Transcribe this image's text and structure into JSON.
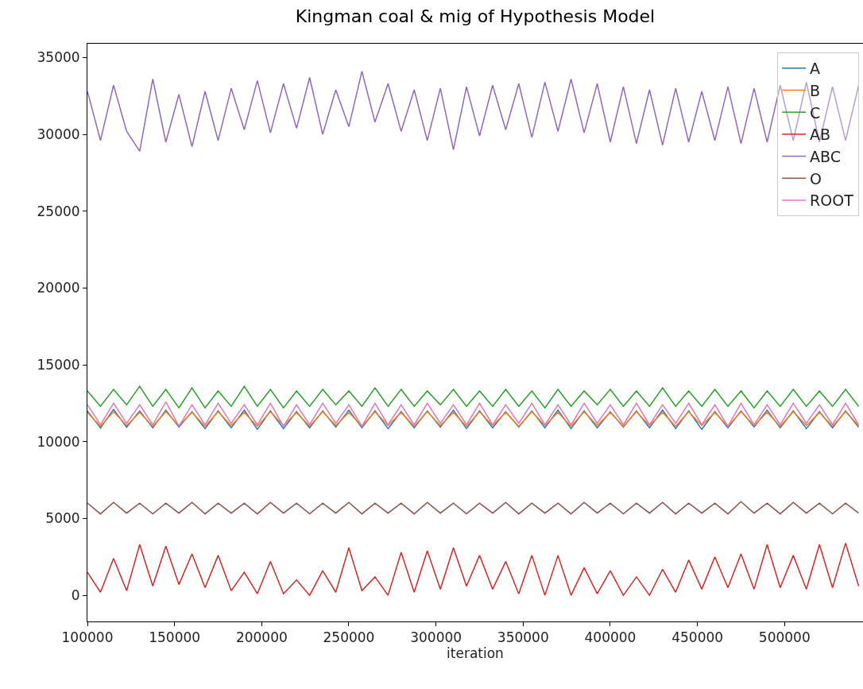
{
  "chart_data": {
    "type": "line",
    "title": "Kingman coal & mig of Hypothesis Model",
    "xlabel": "iteration",
    "x": [
      100000,
      107500,
      115000,
      122500,
      130000,
      137500,
      145000,
      152500,
      160000,
      167500,
      175000,
      182500,
      190000,
      197500,
      205000,
      212500,
      220000,
      227500,
      235000,
      242500,
      250000,
      257500,
      265000,
      272500,
      280000,
      287500,
      295000,
      302500,
      310000,
      317500,
      325000,
      332500,
      340000,
      347500,
      355000,
      362500,
      370000,
      377500,
      385000,
      392500,
      400000,
      407500,
      415000,
      422500,
      430000,
      437500,
      445000,
      452500,
      460000,
      467500,
      475000,
      482500,
      490000,
      497500,
      505000,
      512500,
      520000,
      527500,
      535000,
      542500
    ],
    "series": [
      {
        "name": "A",
        "color": "#1f77b4",
        "values": [
          12000,
          10900,
          12100,
          10950,
          12000,
          10900,
          12050,
          10950,
          11950,
          10850,
          12000,
          10900,
          12050,
          10800,
          12000,
          10850,
          11950,
          10900,
          12000,
          10950,
          12050,
          10900,
          12000,
          10850,
          11950,
          10900,
          12000,
          10950,
          12050,
          10850,
          12000,
          10900,
          11950,
          10950,
          12000,
          10900,
          12050,
          10850,
          12000,
          10900,
          11950,
          10950,
          12000,
          10900,
          12050,
          10850,
          12000,
          10800,
          11950,
          10900,
          12000,
          10950,
          12050,
          10900,
          12000,
          10850,
          11950,
          10900,
          12000,
          10950
        ]
      },
      {
        "name": "B",
        "color": "#ff7f0e",
        "values": [
          11900,
          11000,
          11950,
          11050,
          11900,
          11000,
          11950,
          11050,
          11900,
          11000,
          11950,
          11050,
          11900,
          11000,
          11950,
          11050,
          11900,
          11000,
          11950,
          11050,
          11900,
          11000,
          11950,
          11050,
          11900,
          11000,
          11950,
          11050,
          11900,
          11000,
          11950,
          11050,
          11900,
          11000,
          11950,
          11050,
          11900,
          11000,
          11950,
          11050,
          11900,
          11000,
          11950,
          11050,
          11900,
          11000,
          11950,
          11050,
          11900,
          11000,
          11950,
          11050,
          11900,
          11000,
          11950,
          11050,
          11900,
          11000,
          11950,
          11050
        ]
      },
      {
        "name": "C",
        "color": "#2ca02c",
        "values": [
          13300,
          12300,
          13400,
          12400,
          13600,
          12300,
          13400,
          12200,
          13500,
          12200,
          13300,
          12300,
          13600,
          12300,
          13400,
          12200,
          13300,
          12300,
          13400,
          12400,
          13300,
          12300,
          13500,
          12300,
          13400,
          12300,
          13300,
          12400,
          13400,
          12300,
          13300,
          12300,
          13400,
          12300,
          13300,
          12200,
          13400,
          12300,
          13300,
          12400,
          13400,
          12300,
          13300,
          12300,
          13500,
          12300,
          13300,
          12300,
          13400,
          12300,
          13300,
          12200,
          13300,
          12300,
          13400,
          12300,
          13300,
          12300,
          13400,
          12300
        ]
      },
      {
        "name": "AB",
        "color": "#d62728",
        "values": [
          1500,
          200,
          2400,
          300,
          3300,
          600,
          3200,
          700,
          2700,
          500,
          2600,
          300,
          1500,
          100,
          2200,
          100,
          1000,
          0,
          1600,
          200,
          3100,
          300,
          1200,
          0,
          2800,
          200,
          2900,
          400,
          3100,
          600,
          2600,
          400,
          2200,
          100,
          2600,
          0,
          2600,
          0,
          1800,
          100,
          1600,
          0,
          1200,
          0,
          1700,
          200,
          2300,
          400,
          2500,
          500,
          2700,
          400,
          3300,
          500,
          2600,
          400,
          3300,
          500,
          3400,
          600
        ]
      },
      {
        "name": "ABC",
        "color": "#9467bd",
        "values": [
          32800,
          29600,
          33200,
          30200,
          28900,
          33600,
          29500,
          32600,
          29200,
          32800,
          29600,
          33000,
          30300,
          33500,
          30100,
          33300,
          30400,
          33700,
          30000,
          32900,
          30500,
          34100,
          30800,
          33300,
          30200,
          32900,
          29600,
          33000,
          29000,
          33100,
          29900,
          33200,
          30300,
          33300,
          29800,
          33400,
          30200,
          33600,
          30100,
          33300,
          29500,
          33100,
          29400,
          32900,
          29300,
          33000,
          29500,
          32800,
          29600,
          33100,
          29400,
          33000,
          29500,
          33200,
          29600,
          33400,
          29500,
          33100,
          29600,
          33200
        ]
      },
      {
        "name": "O",
        "color": "#8c564b",
        "values": [
          6000,
          5300,
          6050,
          5350,
          6000,
          5300,
          6000,
          5350,
          6050,
          5300,
          6000,
          5350,
          6000,
          5300,
          6050,
          5350,
          6000,
          5300,
          6000,
          5350,
          6050,
          5300,
          6000,
          5350,
          6000,
          5300,
          6050,
          5350,
          6000,
          5300,
          6000,
          5350,
          6050,
          5300,
          6000,
          5350,
          6000,
          5300,
          6050,
          5350,
          6000,
          5300,
          6000,
          5350,
          6050,
          5300,
          6000,
          5350,
          6000,
          5300,
          6100,
          5350,
          6000,
          5300,
          6050,
          5350,
          6000,
          5300,
          6000,
          5350
        ]
      },
      {
        "name": "ROOT",
        "color": "#e377c2",
        "values": [
          12400,
          11100,
          12500,
          11200,
          12400,
          11100,
          12600,
          11000,
          12400,
          11100,
          12500,
          11200,
          12400,
          11100,
          12500,
          11000,
          12400,
          11100,
          12500,
          11200,
          12400,
          11000,
          12500,
          11100,
          12400,
          11100,
          12500,
          11200,
          12400,
          11100,
          12500,
          11100,
          12400,
          11200,
          12500,
          11100,
          12400,
          11100,
          12500,
          11200,
          12400,
          11100,
          12500,
          11100,
          12400,
          11200,
          12500,
          11100,
          12400,
          11000,
          12500,
          11100,
          12400,
          11100,
          12500,
          11200,
          12400,
          11100,
          12500,
          11100
        ]
      }
    ],
    "xlim": [
      100000,
      545000
    ],
    "xticks": [
      100000,
      150000,
      200000,
      250000,
      300000,
      350000,
      400000,
      450000,
      500000
    ],
    "ylim": [
      -1700,
      35900
    ],
    "yticks": [
      0,
      5000,
      10000,
      15000,
      20000,
      25000,
      30000,
      35000
    ],
    "legend": "top right",
    "marker": "none",
    "line_style": "solid"
  }
}
